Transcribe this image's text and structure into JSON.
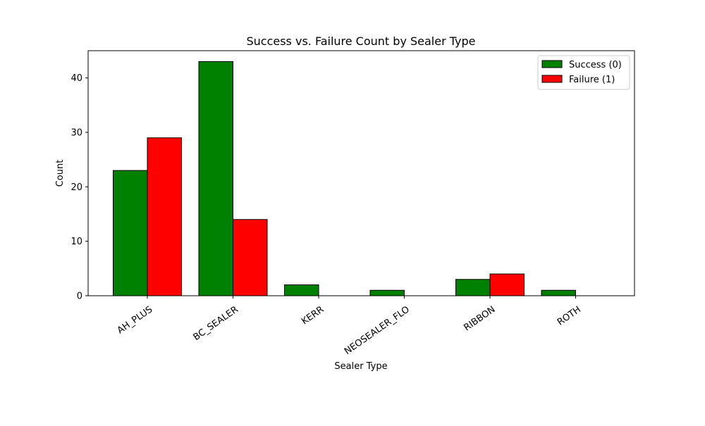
{
  "chart_data": {
    "type": "bar",
    "title": "Success vs. Failure Count by Sealer Type",
    "xlabel": "Sealer Type",
    "ylabel": "Count",
    "categories": [
      "AH_PLUS",
      "BC_SEALER",
      "KERR",
      "NEOSEALER_FLO",
      "RIBBON",
      "ROTH"
    ],
    "series": [
      {
        "name": "Success (0)",
        "color": "#008000",
        "values": [
          23,
          43,
          2,
          1,
          3,
          1
        ]
      },
      {
        "name": "Failure (1)",
        "color": "#ff0000",
        "values": [
          29,
          14,
          0,
          0,
          4,
          0
        ]
      }
    ],
    "ylim": [
      0,
      45
    ],
    "yticks": [
      0,
      10,
      20,
      30,
      40
    ],
    "grid": false,
    "legend_position": "top-right"
  }
}
